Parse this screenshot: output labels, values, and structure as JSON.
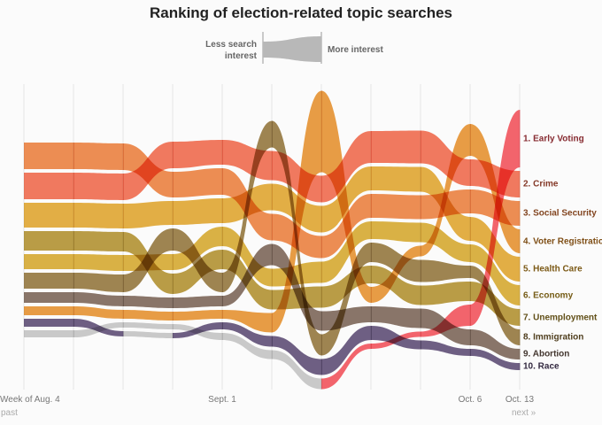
{
  "title": "Ranking of election-related topic searches",
  "legend": {
    "less": "Less search interest",
    "more": "More interest"
  },
  "nav": {
    "past": "past",
    "next": "next »"
  },
  "chart_data": {
    "type": "bump-stream",
    "title": "Ranking of election-related topic searches",
    "x_tick_labels": [
      {
        "week": 0,
        "label": "Week of Aug. 4"
      },
      {
        "week": 4,
        "label": "Sept. 1"
      },
      {
        "week": 9,
        "label": "Oct. 6"
      },
      {
        "week": 10,
        "label": "Oct. 13"
      }
    ],
    "weeks": 11,
    "out_of_top10_color": "#c8c8c8",
    "series": [
      {
        "name": "Early Voting",
        "label": "1. Early Voting",
        "color": "#f5505a",
        "rank": [
          11,
          11,
          11,
          11,
          11,
          11,
          11,
          10,
          9,
          8,
          1
        ],
        "interest": [
          8,
          8,
          6,
          6,
          8,
          10,
          12,
          6,
          6,
          24,
          65
        ]
      },
      {
        "name": "Crime",
        "label": "2. Crime",
        "color": "#f2694a",
        "rank": [
          2,
          2,
          2,
          1,
          1,
          2,
          2,
          1,
          1,
          2,
          2
        ],
        "interest": [
          30,
          30,
          30,
          30,
          28,
          33,
          30,
          36,
          37,
          30,
          30
        ]
      },
      {
        "name": "Social Security",
        "label": "3. Social Security",
        "color": "#ee7f3c",
        "rank": [
          1,
          1,
          1,
          2,
          2,
          4,
          4,
          3,
          3,
          3,
          3
        ],
        "interest": [
          30,
          30,
          30,
          29,
          30,
          30,
          25,
          27,
          27,
          27,
          28
        ]
      },
      {
        "name": "Voter Registration",
        "label": "4. Voter Registration",
        "color": "#e8922c",
        "rank": [
          8,
          8,
          8,
          8,
          8,
          8,
          1,
          7,
          5,
          1,
          4
        ],
        "interest": [
          10,
          10,
          10,
          10,
          10,
          22,
          92,
          18,
          12,
          36,
          27
        ]
      },
      {
        "name": "Health Care",
        "label": "5. Health Care",
        "color": "#e3a62c",
        "rank": [
          3,
          3,
          3,
          3,
          3,
          3,
          3,
          2,
          2,
          4,
          5
        ],
        "interest": [
          28,
          28,
          28,
          27,
          28,
          30,
          30,
          27,
          28,
          27,
          28
        ]
      },
      {
        "name": "Economy",
        "label": "6. Economy",
        "color": "#d8aa2c",
        "rank": [
          5,
          5,
          5,
          5,
          4,
          6,
          5,
          4,
          4,
          5,
          6
        ],
        "interest": [
          17,
          17,
          18,
          18,
          22,
          20,
          24,
          20,
          22,
          20,
          23
        ]
      },
      {
        "name": "Unemployment",
        "label": "7. Unemployment",
        "color": "#b3922e",
        "rank": [
          4,
          4,
          4,
          6,
          5,
          7,
          6,
          6,
          7,
          7,
          7
        ],
        "interest": [
          22,
          22,
          22,
          23,
          22,
          22,
          24,
          20,
          22,
          22,
          19
        ]
      },
      {
        "name": "Immigration",
        "label": "8. Immigration",
        "color": "#94753a",
        "rank": [
          6,
          6,
          6,
          4,
          6,
          1,
          8,
          5,
          6,
          6,
          8
        ],
        "interest": [
          18,
          18,
          20,
          25,
          22,
          30,
          24,
          22,
          25,
          14,
          18
        ]
      },
      {
        "name": "Abortion",
        "label": "9. Abortion",
        "color": "#7b6457",
        "rank": [
          7,
          7,
          7,
          7,
          7,
          5,
          7,
          8,
          8,
          9,
          9
        ],
        "interest": [
          12,
          12,
          12,
          12,
          12,
          24,
          22,
          18,
          22,
          18,
          12
        ]
      },
      {
        "name": "Race",
        "label": "10. Race",
        "color": "#5c4a74",
        "rank": [
          9,
          9,
          12,
          12,
          10,
          9,
          9,
          9,
          10,
          10,
          10
        ],
        "interest": [
          9,
          9,
          6,
          6,
          8,
          12,
          18,
          16,
          10,
          8,
          8
        ]
      }
    ]
  }
}
